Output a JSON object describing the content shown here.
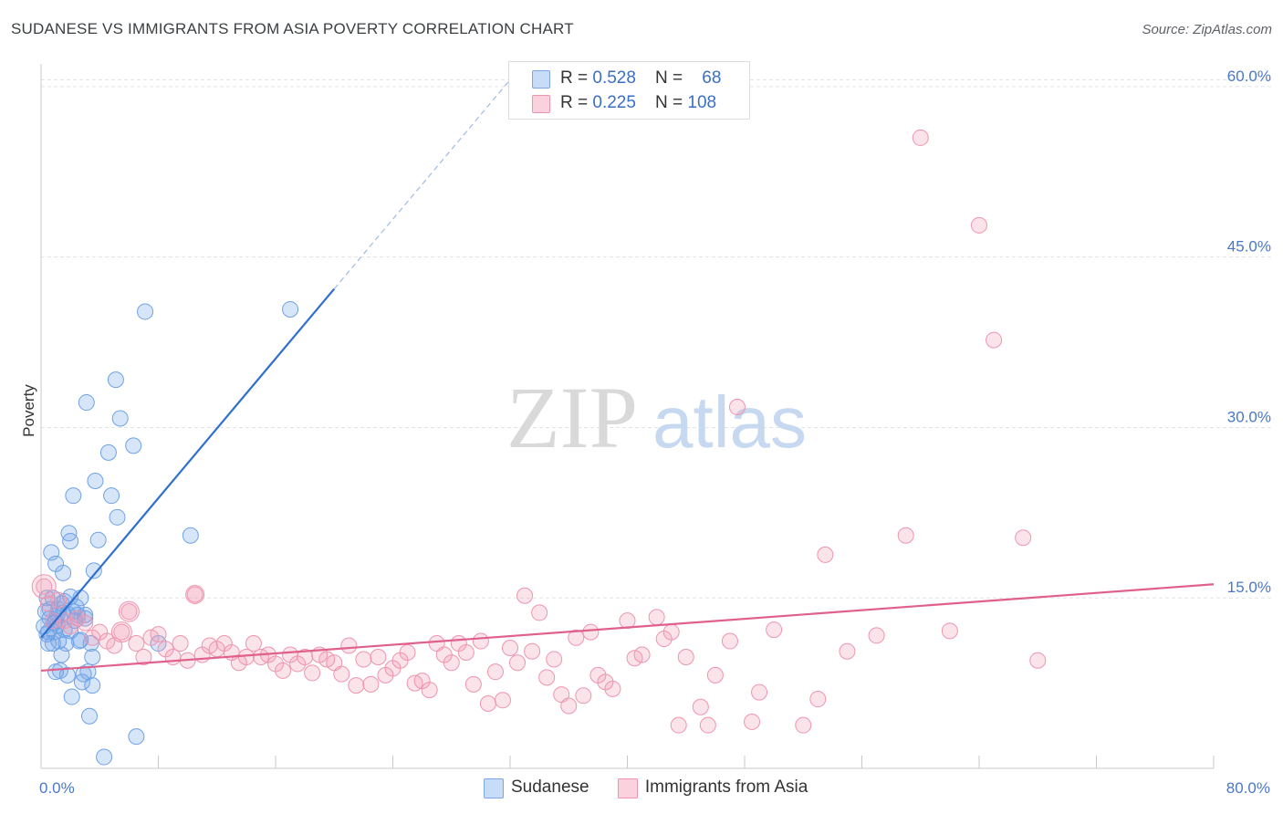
{
  "title": "SUDANESE VS IMMIGRANTS FROM ASIA POVERTY CORRELATION CHART",
  "source": "Source: ZipAtlas.com",
  "watermark": {
    "zip": "ZIP",
    "atlas": "atlas"
  },
  "legend": {
    "rows": [
      {
        "r_label": "R = ",
        "r_value": "0.528",
        "n_label": "N = ",
        "n_value": "68",
        "color": "#a9c8f0"
      },
      {
        "r_label": "R = ",
        "r_value": "0.225",
        "n_label": "N = ",
        "n_value": "108",
        "color": "#f7b9cc"
      }
    ]
  },
  "bottom_legend": {
    "sudanese": "Sudanese",
    "asia": "Immigrants from Asia"
  },
  "chart_data": {
    "type": "scatter",
    "ylabel": "Poverty",
    "xlim": [
      0,
      80
    ],
    "ylim": [
      0,
      62
    ],
    "x_tick_labels": [
      {
        "value": 0,
        "label": "0.0%"
      },
      {
        "value": 80,
        "label": "80.0%"
      }
    ],
    "y_tick_labels": [
      {
        "value": 15,
        "label": "15.0%"
      },
      {
        "value": 30,
        "label": "30.0%"
      },
      {
        "value": 45,
        "label": "45.0%"
      },
      {
        "value": 60,
        "label": "60.0%"
      }
    ],
    "grid": true,
    "series": [
      {
        "name": "Sudanese",
        "color": "#6fa2e6",
        "line_color": "#2f6fd0",
        "trend": {
          "x0": 0,
          "y0": 11.5,
          "x1": 20,
          "y1": 42.2,
          "dash_to_x": 32,
          "dash_to_y": 60.6
        },
        "points": [
          [
            0.2,
            12.5
          ],
          [
            0.3,
            13.8
          ],
          [
            0.4,
            15.0
          ],
          [
            0.5,
            11.0
          ],
          [
            0.5,
            12.0
          ],
          [
            0.6,
            13.2
          ],
          [
            0.6,
            14.0
          ],
          [
            0.7,
            19.0
          ],
          [
            0.8,
            15.0
          ],
          [
            0.8,
            11.0
          ],
          [
            0.9,
            12.8
          ],
          [
            1.0,
            8.5
          ],
          [
            1.0,
            18.0
          ],
          [
            1.1,
            13.5
          ],
          [
            1.2,
            14.0
          ],
          [
            1.2,
            11.2
          ],
          [
            1.3,
            8.6
          ],
          [
            1.4,
            10.0
          ],
          [
            1.5,
            17.2
          ],
          [
            1.5,
            13.7
          ],
          [
            1.6,
            12.2
          ],
          [
            1.7,
            11.0
          ],
          [
            1.8,
            13.6
          ],
          [
            1.8,
            8.2
          ],
          [
            1.9,
            20.7
          ],
          [
            2.0,
            15.1
          ],
          [
            2.0,
            20.0
          ],
          [
            2.1,
            6.3
          ],
          [
            2.2,
            24.0
          ],
          [
            2.3,
            13.0
          ],
          [
            2.4,
            14.2
          ],
          [
            2.5,
            13.5
          ],
          [
            2.6,
            11.2
          ],
          [
            2.7,
            15.0
          ],
          [
            2.8,
            7.6
          ],
          [
            2.9,
            8.3
          ],
          [
            3.0,
            13.2
          ],
          [
            3.1,
            32.2
          ],
          [
            3.2,
            8.5
          ],
          [
            3.3,
            4.6
          ],
          [
            3.4,
            11.0
          ],
          [
            3.5,
            7.3
          ],
          [
            3.5,
            9.8
          ],
          [
            3.6,
            17.4
          ],
          [
            3.7,
            25.3
          ],
          [
            3.9,
            20.1
          ],
          [
            4.3,
            1.0
          ],
          [
            4.6,
            27.8
          ],
          [
            4.8,
            24.0
          ],
          [
            5.1,
            34.2
          ],
          [
            5.2,
            22.1
          ],
          [
            5.4,
            30.8
          ],
          [
            6.3,
            28.4
          ],
          [
            6.5,
            2.8
          ],
          [
            7.1,
            40.2
          ],
          [
            8.0,
            11.0
          ],
          [
            10.2,
            20.5
          ],
          [
            17.0,
            40.4
          ],
          [
            1.0,
            13.0
          ],
          [
            1.4,
            14.5
          ],
          [
            0.9,
            12.0
          ],
          [
            2.2,
            13.8
          ],
          [
            2.7,
            11.3
          ],
          [
            1.6,
            14.7
          ],
          [
            0.4,
            11.8
          ],
          [
            3.0,
            13.5
          ],
          [
            1.1,
            12.6
          ],
          [
            2.0,
            12.1
          ]
        ]
      },
      {
        "name": "Immigrants from Asia",
        "color": "#f29ab5",
        "line_color": "#e0608c",
        "trend": {
          "x0": 0,
          "y0": 8.6,
          "x1": 80,
          "y1": 16.2
        },
        "points": [
          [
            0.2,
            16.0
          ],
          [
            0.5,
            14.5
          ],
          [
            0.8,
            13.0
          ],
          [
            1.2,
            14.8
          ],
          [
            1.6,
            13.0
          ],
          [
            2.0,
            12.5
          ],
          [
            2.5,
            13.2
          ],
          [
            3.0,
            12.8
          ],
          [
            3.5,
            11.5
          ],
          [
            4.0,
            12.0
          ],
          [
            4.5,
            11.2
          ],
          [
            5.0,
            10.8
          ],
          [
            5.5,
            12.0
          ],
          [
            6.0,
            13.8
          ],
          [
            6.5,
            11.0
          ],
          [
            7.0,
            9.8
          ],
          [
            7.5,
            11.5
          ],
          [
            8.0,
            11.8
          ],
          [
            8.5,
            10.5
          ],
          [
            9.0,
            9.8
          ],
          [
            9.5,
            11.0
          ],
          [
            10.0,
            9.5
          ],
          [
            10.5,
            15.3
          ],
          [
            11.0,
            10.0
          ],
          [
            11.5,
            10.8
          ],
          [
            12.0,
            10.5
          ],
          [
            12.5,
            11.0
          ],
          [
            13.0,
            10.2
          ],
          [
            13.5,
            9.3
          ],
          [
            14.0,
            9.8
          ],
          [
            14.5,
            11.0
          ],
          [
            15.0,
            9.8
          ],
          [
            15.5,
            10.0
          ],
          [
            16.0,
            9.2
          ],
          [
            16.5,
            8.6
          ],
          [
            17.0,
            10.0
          ],
          [
            17.5,
            9.2
          ],
          [
            18.0,
            9.8
          ],
          [
            18.5,
            8.4
          ],
          [
            19.0,
            10.0
          ],
          [
            19.5,
            9.6
          ],
          [
            20.0,
            9.3
          ],
          [
            20.5,
            8.3
          ],
          [
            21.0,
            10.8
          ],
          [
            21.5,
            7.3
          ],
          [
            22.0,
            9.6
          ],
          [
            22.5,
            7.4
          ],
          [
            23.0,
            9.8
          ],
          [
            23.5,
            8.2
          ],
          [
            24.0,
            8.8
          ],
          [
            24.5,
            9.5
          ],
          [
            25.0,
            10.2
          ],
          [
            25.5,
            7.5
          ],
          [
            26.0,
            7.7
          ],
          [
            26.5,
            6.9
          ],
          [
            27.0,
            11.0
          ],
          [
            27.5,
            10.0
          ],
          [
            28.0,
            9.3
          ],
          [
            28.5,
            11.0
          ],
          [
            29.0,
            10.2
          ],
          [
            29.5,
            7.4
          ],
          [
            30.0,
            11.2
          ],
          [
            30.5,
            5.7
          ],
          [
            31.0,
            8.5
          ],
          [
            31.5,
            6.0
          ],
          [
            32.0,
            10.6
          ],
          [
            32.5,
            9.3
          ],
          [
            33.0,
            15.2
          ],
          [
            33.5,
            10.3
          ],
          [
            34.0,
            13.7
          ],
          [
            34.5,
            8.0
          ],
          [
            35.0,
            9.6
          ],
          [
            35.5,
            6.5
          ],
          [
            36.0,
            5.5
          ],
          [
            36.5,
            11.5
          ],
          [
            37.0,
            6.4
          ],
          [
            37.5,
            12.0
          ],
          [
            38.0,
            8.2
          ],
          [
            38.5,
            7.6
          ],
          [
            39.0,
            7.0
          ],
          [
            40.0,
            13.0
          ],
          [
            40.5,
            9.7
          ],
          [
            41.0,
            10.0
          ],
          [
            42.0,
            13.3
          ],
          [
            42.5,
            11.4
          ],
          [
            43.0,
            12.0
          ],
          [
            43.5,
            3.8
          ],
          [
            44.0,
            9.8
          ],
          [
            45.0,
            5.4
          ],
          [
            45.5,
            3.8
          ],
          [
            46.0,
            8.2
          ],
          [
            47.0,
            11.2
          ],
          [
            47.5,
            31.8
          ],
          [
            48.5,
            4.1
          ],
          [
            50.0,
            12.2
          ],
          [
            52.0,
            3.8
          ],
          [
            53.0,
            6.1
          ],
          [
            53.5,
            18.8
          ],
          [
            57.0,
            11.7
          ],
          [
            59.0,
            20.5
          ],
          [
            60.0,
            55.5
          ],
          [
            64.0,
            47.8
          ],
          [
            65.0,
            37.7
          ],
          [
            67.0,
            20.3
          ],
          [
            68.0,
            9.5
          ],
          [
            62.0,
            12.1
          ],
          [
            55.0,
            10.3
          ],
          [
            49.0,
            6.7
          ]
        ]
      }
    ]
  }
}
